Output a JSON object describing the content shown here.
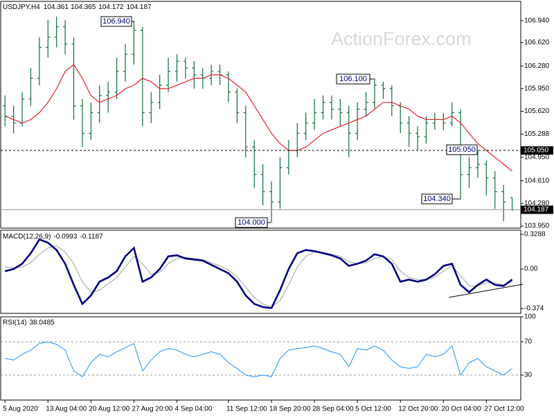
{
  "chart_data": [
    {
      "type": "ohlc",
      "title": "USDJPY,H4",
      "color": "#0b6e3a",
      "watermark": "ActionForex.com",
      "open": [
        105.7,
        105.55,
        105.45,
        105.8,
        106.1,
        106.55,
        106.7,
        106.85,
        106.6,
        105.7,
        105.3,
        105.6,
        105.85,
        105.9,
        106.2,
        106.45,
        106.8,
        105.6,
        105.75,
        106.0,
        106.2,
        106.35,
        106.25,
        106.15,
        106.1,
        106.2,
        106.15,
        105.9,
        105.6,
        105.1,
        104.7,
        104.45,
        104.3,
        104.8,
        105.05,
        105.3,
        105.45,
        105.6,
        105.75,
        105.65,
        105.6,
        105.3,
        105.65,
        105.75,
        106.0,
        105.95,
        105.7,
        105.45,
        105.3,
        105.25,
        105.45,
        105.5,
        105.45,
        105.6,
        104.7,
        104.8,
        104.85,
        104.65,
        104.45,
        104.361
      ],
      "high": [
        105.85,
        105.7,
        105.9,
        106.25,
        106.7,
        106.95,
        107.0,
        106.95,
        106.7,
        105.8,
        105.75,
        106.0,
        106.05,
        106.4,
        106.6,
        106.94,
        106.85,
        105.9,
        106.15,
        106.4,
        106.45,
        106.4,
        106.35,
        106.25,
        106.3,
        106.3,
        106.2,
        105.95,
        105.7,
        105.2,
        104.85,
        104.6,
        104.95,
        105.2,
        105.45,
        105.6,
        105.8,
        105.85,
        105.85,
        105.8,
        105.7,
        105.75,
        105.9,
        106.1,
        106.05,
        106.0,
        105.75,
        105.55,
        105.4,
        105.55,
        105.6,
        105.6,
        105.75,
        105.65,
        104.95,
        105.05,
        104.9,
        104.75,
        104.55,
        104.365
      ],
      "low": [
        105.4,
        105.3,
        105.4,
        105.7,
        106.0,
        106.4,
        106.55,
        106.45,
        105.5,
        105.1,
        105.2,
        105.45,
        105.6,
        105.8,
        106.05,
        106.3,
        105.4,
        105.45,
        105.65,
        105.9,
        106.05,
        106.1,
        105.95,
        105.95,
        106.0,
        106.0,
        105.75,
        105.45,
        104.95,
        104.5,
        104.25,
        104.0,
        104.2,
        104.7,
        104.95,
        105.2,
        105.35,
        105.5,
        105.5,
        105.4,
        104.95,
        105.2,
        105.55,
        105.65,
        105.8,
        105.55,
        105.3,
        105.1,
        105.05,
        105.15,
        105.35,
        105.35,
        105.4,
        104.34,
        104.5,
        104.65,
        104.4,
        104.2,
        104.02,
        104.172
      ],
      "close": [
        105.55,
        105.45,
        105.8,
        106.1,
        106.55,
        106.7,
        106.85,
        106.6,
        105.7,
        105.3,
        105.6,
        105.85,
        105.9,
        106.2,
        106.45,
        106.8,
        105.6,
        105.75,
        106.0,
        106.2,
        106.35,
        106.25,
        106.15,
        106.1,
        106.2,
        106.15,
        105.9,
        105.6,
        105.1,
        104.7,
        104.45,
        104.3,
        104.8,
        105.05,
        105.3,
        105.45,
        105.6,
        105.75,
        105.65,
        105.6,
        105.3,
        105.65,
        105.75,
        106.0,
        105.95,
        105.7,
        105.45,
        105.3,
        105.25,
        105.45,
        105.5,
        105.45,
        105.6,
        104.7,
        104.8,
        104.85,
        104.65,
        104.45,
        104.3,
        104.187
      ],
      "ma": {
        "color": "#e0202a",
        "values": [
          105.55,
          105.5,
          105.45,
          105.5,
          105.6,
          105.75,
          105.95,
          106.2,
          106.3,
          106.1,
          105.85,
          105.75,
          105.8,
          105.85,
          105.95,
          106.0,
          106.1,
          106.05,
          105.95,
          105.95,
          106.0,
          106.05,
          106.1,
          106.1,
          106.15,
          106.15,
          106.1,
          106.0,
          105.9,
          105.7,
          105.5,
          105.3,
          105.15,
          105.05,
          105.05,
          105.1,
          105.2,
          105.3,
          105.35,
          105.4,
          105.45,
          105.5,
          105.55,
          105.65,
          105.75,
          105.75,
          105.7,
          105.65,
          105.55,
          105.5,
          105.5,
          105.5,
          105.55,
          105.45,
          105.3,
          105.15,
          105.05,
          104.95,
          104.85,
          104.75
        ]
      },
      "ylim": [
        103.92,
        107.22
      ],
      "yticks": [
        {
          "value": 106.94,
          "label": "106.940"
        },
        {
          "value": 106.62,
          "label": "106.620"
        },
        {
          "value": 106.28,
          "label": "106.280"
        },
        {
          "value": 105.95,
          "label": "105.950"
        },
        {
          "value": 105.62,
          "label": "105.620"
        },
        105.288,
        {
          "value": 104.95,
          "label": "104.950"
        },
        {
          "value": 104.61,
          "label": "104.610"
        },
        {
          "value": 104.28,
          "label": "104.280"
        },
        {
          "value": 103.95,
          "label": "103.950"
        }
      ],
      "level": {
        "value": 105.05,
        "label": "105.050"
      },
      "annotations": [
        "106.940",
        "106.100",
        "105.050",
        "104.340",
        "104.000"
      ]
    },
    {
      "type": "line",
      "title": "MACD(12,26,9)",
      "series": [
        {
          "color": "#000080",
          "values": [
            -0.02,
            0.0,
            0.05,
            0.15,
            0.28,
            0.25,
            0.18,
            0.05,
            -0.15,
            -0.33,
            -0.25,
            -0.12,
            -0.08,
            -0.02,
            0.12,
            0.2,
            -0.12,
            -0.08,
            0.0,
            0.12,
            0.13,
            0.1,
            0.09,
            0.08,
            0.04,
            0.0,
            -0.04,
            -0.12,
            -0.25,
            -0.33,
            -0.36,
            -0.37,
            -0.2,
            0.0,
            0.15,
            0.18,
            0.17,
            0.15,
            0.13,
            0.1,
            0.03,
            0.05,
            0.08,
            0.14,
            0.12,
            0.05,
            -0.12,
            -0.1,
            -0.12,
            -0.1,
            -0.05,
            0.03,
            0.05,
            -0.15,
            -0.22,
            -0.15,
            -0.1,
            -0.15,
            -0.16,
            -0.0993
          ]
        },
        {
          "color": "#a0a0a0",
          "values": [
            0.02,
            0.01,
            0.02,
            0.06,
            0.14,
            0.2,
            0.22,
            0.16,
            0.05,
            -0.12,
            -0.22,
            -0.2,
            -0.14,
            -0.08,
            0.02,
            0.12,
            0.05,
            -0.05,
            -0.03,
            0.05,
            0.1,
            0.11,
            0.1,
            0.09,
            0.06,
            0.03,
            -0.01,
            -0.07,
            -0.17,
            -0.27,
            -0.33,
            -0.36,
            -0.3,
            -0.15,
            0.02,
            0.12,
            0.16,
            0.16,
            0.14,
            0.12,
            0.07,
            0.05,
            0.06,
            0.1,
            0.12,
            0.09,
            -0.02,
            -0.08,
            -0.1,
            -0.1,
            -0.08,
            -0.02,
            0.03,
            -0.06,
            -0.16,
            -0.16,
            -0.13,
            -0.13,
            -0.15,
            -0.1187
          ]
        }
      ],
      "ylim": [
        -0.42,
        0.368
      ],
      "yticks": [
        0.3288,
        {
          "value": 0,
          "label": "0.00"
        },
        -0.374
      ]
    },
    {
      "type": "line",
      "title": "RSI(14)",
      "series": [
        {
          "color": "#1e90ff",
          "values": [
            50,
            48,
            55,
            60,
            68,
            70,
            67,
            60,
            35,
            28,
            45,
            55,
            52,
            58,
            63,
            68,
            35,
            48,
            58,
            62,
            60,
            55,
            52,
            55,
            58,
            55,
            45,
            38,
            30,
            28,
            30,
            28,
            50,
            60,
            62,
            63,
            65,
            62,
            58,
            55,
            40,
            62,
            60,
            65,
            60,
            48,
            40,
            38,
            40,
            55,
            52,
            55,
            65,
            30,
            45,
            50,
            40,
            35,
            30,
            38.0485
          ]
        }
      ],
      "ylim": [
        0,
        100
      ],
      "yticks": [
        100,
        70,
        30
      ],
      "levels": [
        70,
        30
      ],
      "xlim": [
        -0.5,
        60
      ],
      "xticks": [
        {
          "value": 0,
          "label": "5 Aug 2020"
        },
        {
          "value": 5,
          "label": "13 Aug 04:00"
        },
        {
          "value": 10,
          "label": "20 Aug 12:00"
        },
        {
          "value": 15,
          "label": "27 Aug 20:00"
        },
        {
          "value": 20,
          "label": "4 Sep 04:00"
        },
        {
          "value": 26,
          "label": "11 Sep 12:00"
        },
        {
          "value": 31,
          "label": "18 Sep 20:00"
        },
        {
          "value": 36,
          "label": "28 Sep 04:00"
        },
        {
          "value": 41,
          "label": "5 Oct 12:00"
        },
        {
          "value": 46,
          "label": "12 Oct 20:00"
        },
        {
          "value": 51,
          "label": "20 Oct 04:00"
        },
        {
          "value": 56,
          "label": "27 Oct 12:00"
        }
      ]
    }
  ]
}
